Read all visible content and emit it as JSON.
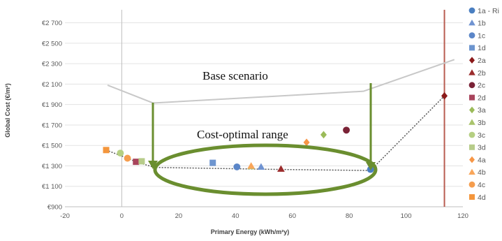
{
  "chart_data": {
    "type": "scatter",
    "xlabel": "Primary Energy (kWh/m²y)",
    "ylabel": "Global Cost (€/m²)",
    "xlim": [
      -20,
      120
    ],
    "ylim": [
      900,
      2800
    ],
    "x_ticks": [
      {
        "value": -20,
        "label": "-20"
      },
      {
        "value": 0,
        "label": "0"
      },
      {
        "value": 20,
        "label": "20"
      },
      {
        "value": 40,
        "label": "40"
      },
      {
        "value": 60,
        "label": "60"
      },
      {
        "value": 80,
        "label": "80"
      },
      {
        "value": 100,
        "label": "100"
      },
      {
        "value": 120,
        "label": "120"
      }
    ],
    "y_ticks": [
      {
        "value": 900,
        "label": "€900"
      },
      {
        "value": 1100,
        "label": "€1 100"
      },
      {
        "value": 1300,
        "label": "€1 300"
      },
      {
        "value": 1500,
        "label": "€1 500"
      },
      {
        "value": 1700,
        "label": "€1 700"
      },
      {
        "value": 1900,
        "label": "€1 900"
      },
      {
        "value": 2100,
        "label": "€2 100"
      },
      {
        "value": 2300,
        "label": "€2 300"
      },
      {
        "value": 2500,
        "label": "€2 500"
      },
      {
        "value": 2700,
        "label": "€2 700"
      }
    ],
    "grid": "horizontal",
    "legend_position": "right",
    "series": [
      {
        "name": "1a - Ri",
        "marker": "circle",
        "color": "#4a7fc1",
        "points": [
          [
            87.5,
            1265
          ]
        ]
      },
      {
        "name": "1b",
        "marker": "triangle",
        "color": "#6f93d1",
        "points": [
          [
            49,
            1290
          ]
        ]
      },
      {
        "name": "1c",
        "marker": "circle",
        "color": "#5b86c8",
        "points": [
          [
            40.5,
            1290
          ]
        ]
      },
      {
        "name": "1d",
        "marker": "square",
        "color": "#6d95cf",
        "points": [
          [
            32,
            1330
          ]
        ]
      },
      {
        "name": "2a",
        "marker": "diamond",
        "color": "#8b1a1a",
        "points": [
          [
            113.5,
            1985
          ]
        ]
      },
      {
        "name": "2b",
        "marker": "triangle",
        "color": "#9b2c2c",
        "points": [
          [
            56,
            1270
          ]
        ]
      },
      {
        "name": "2c",
        "marker": "circle",
        "color": "#7a2236",
        "points": [
          [
            79,
            1650
          ]
        ]
      },
      {
        "name": "2d",
        "marker": "square",
        "color": "#a8445c",
        "points": [
          [
            5,
            1340
          ]
        ]
      },
      {
        "name": "3a",
        "marker": "diamond",
        "color": "#9bbb59",
        "points": [
          [
            71,
            1605
          ]
        ]
      },
      {
        "name": "3b",
        "marker": "triangle",
        "color": "#a9c46b",
        "points": [
          [
            45.5,
            1295
          ]
        ]
      },
      {
        "name": "3c",
        "marker": "circle",
        "color": "#b5cf82",
        "points": [
          [
            -0.5,
            1425
          ]
        ]
      },
      {
        "name": "3d",
        "marker": "square",
        "color": "#b7cc8a",
        "points": [
          [
            7,
            1345
          ]
        ]
      },
      {
        "name": "4a",
        "marker": "diamond",
        "color": "#f79646",
        "points": [
          [
            65,
            1530
          ]
        ]
      },
      {
        "name": "4b",
        "marker": "triangle",
        "color": "#f9a65a",
        "points": [
          [
            45.5,
            1300
          ]
        ]
      },
      {
        "name": "4c",
        "marker": "circle",
        "color": "#f59d4e",
        "points": [
          [
            2,
            1375
          ]
        ]
      },
      {
        "name": "4d",
        "marker": "square",
        "color": "#f4963c",
        "points": [
          [
            -5.5,
            1455
          ]
        ]
      }
    ],
    "pareto_front": [
      [
        -5.5,
        1455
      ],
      [
        2,
        1375
      ],
      [
        5,
        1340
      ],
      [
        11.5,
        1285
      ],
      [
        56,
        1265
      ],
      [
        87.5,
        1255
      ],
      [
        113.5,
        1985
      ]
    ],
    "base_scenario_outline": [
      [
        -5,
        2090
      ],
      [
        11,
        1915
      ],
      [
        85,
        2030
      ],
      [
        117,
        2340
      ]
    ],
    "vertical_reference_x": 113.5,
    "annotations": {
      "base_scenario": "Base scenario",
      "cost_optimal_range": "Cost-optimal range"
    }
  }
}
